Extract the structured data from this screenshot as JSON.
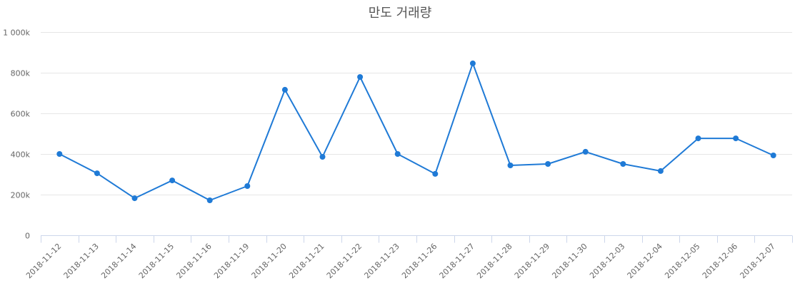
{
  "chart_data": {
    "type": "line",
    "title": "만도 거래량",
    "xlabel": "",
    "ylabel": "",
    "ylim": [
      0,
      1000000
    ],
    "yticks": [
      0,
      200000,
      400000,
      600000,
      800000,
      1000000
    ],
    "ytick_labels": [
      "0",
      "200k",
      "400k",
      "600k",
      "800k",
      "1 000k"
    ],
    "grid": true,
    "legend": null,
    "categories": [
      "2018-11-12",
      "2018-11-13",
      "2018-11-14",
      "2018-11-15",
      "2018-11-16",
      "2018-11-19",
      "2018-11-20",
      "2018-11-21",
      "2018-11-22",
      "2018-11-23",
      "2018-11-26",
      "2018-11-27",
      "2018-11-28",
      "2018-11-29",
      "2018-11-30",
      "2018-12-03",
      "2018-12-04",
      "2018-12-05",
      "2018-12-06",
      "2018-12-07"
    ],
    "series": [
      {
        "name": "거래량",
        "color": "#1f7ad6",
        "values": [
          400000,
          305000,
          182000,
          270000,
          172000,
          242000,
          716000,
          386000,
          779000,
          400000,
          302000,
          846000,
          344000,
          351000,
          411000,
          351000,
          316000,
          477000,
          477000,
          393000
        ]
      }
    ]
  },
  "colors": {
    "series": "#1f7ad6",
    "grid": "#e6e6e6",
    "axis": "#ccd6eb",
    "text": "#666666",
    "title": "#555555"
  }
}
